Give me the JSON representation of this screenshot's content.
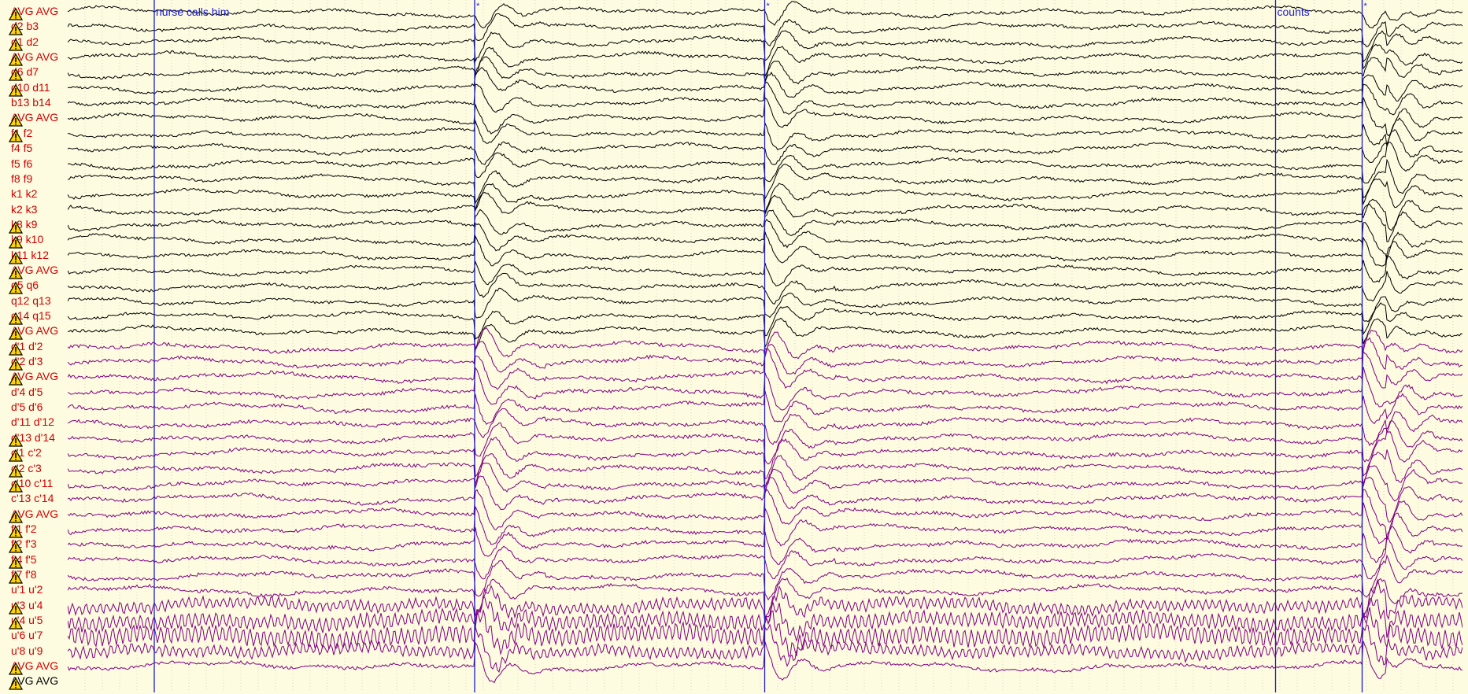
{
  "colors": {
    "background": "#fdfbe0",
    "label_red": "#d00000",
    "label_black": "#000000",
    "trace_black": "#000000",
    "trace_purple": "#800080",
    "event_marker": "#1c1cd0",
    "grid_dotted": "#d6d6c2",
    "warning_fill": "#ffd400"
  },
  "icons": {
    "warning": "warning-triangle-icon"
  },
  "events": [
    {
      "label": "nurse calls him",
      "t": 1.0
    },
    {
      "label": "*",
      "t": 4.7
    },
    {
      "label": "*",
      "t": 8.05
    },
    {
      "label": "counts",
      "t": 13.95
    },
    {
      "label": "*",
      "t": 14.95
    }
  ],
  "channels": [
    {
      "label": "AVG AVG",
      "warn": true,
      "group": "a"
    },
    {
      "label": "d2 b3",
      "warn": true,
      "group": "a"
    },
    {
      "label": "d1 d2",
      "warn": true,
      "group": "a"
    },
    {
      "label": "AVG AVG",
      "warn": true,
      "group": "a"
    },
    {
      "label": "d6 d7",
      "warn": true,
      "group": "a"
    },
    {
      "label": "d10 d11",
      "warn": true,
      "group": "a"
    },
    {
      "label": "b13 b14",
      "warn": false,
      "group": "a"
    },
    {
      "label": "AVG AVG",
      "warn": true,
      "group": "a"
    },
    {
      "label": "f1 f2",
      "warn": true,
      "group": "a"
    },
    {
      "label": "f4 f5",
      "warn": false,
      "group": "a"
    },
    {
      "label": "f5 f6",
      "warn": false,
      "group": "a"
    },
    {
      "label": "f8 f9",
      "warn": false,
      "group": "a"
    },
    {
      "label": "k1 k2",
      "warn": false,
      "group": "a"
    },
    {
      "label": "k2 k3",
      "warn": false,
      "group": "a"
    },
    {
      "label": "k8 k9",
      "warn": true,
      "group": "a"
    },
    {
      "label": "k9 k10",
      "warn": true,
      "group": "a"
    },
    {
      "label": "k11 k12",
      "warn": true,
      "group": "a"
    },
    {
      "label": "AVG AVG",
      "warn": true,
      "group": "a"
    },
    {
      "label": "q5 q6",
      "warn": true,
      "group": "a"
    },
    {
      "label": "q12 q13",
      "warn": false,
      "group": "a"
    },
    {
      "label": "q14 q15",
      "warn": true,
      "group": "a"
    },
    {
      "label": "AVG AVG",
      "warn": true,
      "group": "a"
    },
    {
      "label": "d'1 d'2",
      "warn": true,
      "group": "b"
    },
    {
      "label": "d'2 d'3",
      "warn": true,
      "group": "b"
    },
    {
      "label": "AVG AVG",
      "warn": true,
      "group": "b"
    },
    {
      "label": "d'4 d'5",
      "warn": false,
      "group": "b"
    },
    {
      "label": "d'5 d'6",
      "warn": false,
      "group": "b"
    },
    {
      "label": "d'11 d'12",
      "warn": false,
      "group": "b"
    },
    {
      "label": "d'13 d'14",
      "warn": true,
      "group": "b"
    },
    {
      "label": "c'1 c'2",
      "warn": true,
      "group": "b"
    },
    {
      "label": "c'2 c'3",
      "warn": true,
      "group": "b"
    },
    {
      "label": "c'10 c'11",
      "warn": true,
      "group": "b"
    },
    {
      "label": "c'13 c'14",
      "warn": false,
      "group": "b"
    },
    {
      "label": "AVG AVG",
      "warn": true,
      "group": "b"
    },
    {
      "label": "f'1 f'2",
      "warn": true,
      "group": "b"
    },
    {
      "label": "f'2 f'3",
      "warn": true,
      "group": "b"
    },
    {
      "label": "f'4 f'5",
      "warn": true,
      "group": "b"
    },
    {
      "label": "f'7 f'8",
      "warn": true,
      "group": "b"
    },
    {
      "label": "u'1 u'2",
      "warn": false,
      "group": "b"
    },
    {
      "label": "u'3 u'4",
      "warn": true,
      "group": "b"
    },
    {
      "label": "u'4 u'5",
      "warn": true,
      "group": "b"
    },
    {
      "label": "u'6 u'7",
      "warn": false,
      "group": "b"
    },
    {
      "label": "u'8 u'9",
      "warn": false,
      "group": "b"
    },
    {
      "label": "AVG AVG",
      "warn": true,
      "group": "b"
    },
    {
      "label": "AVG AVG",
      "warn": true,
      "group": "c"
    }
  ]
}
